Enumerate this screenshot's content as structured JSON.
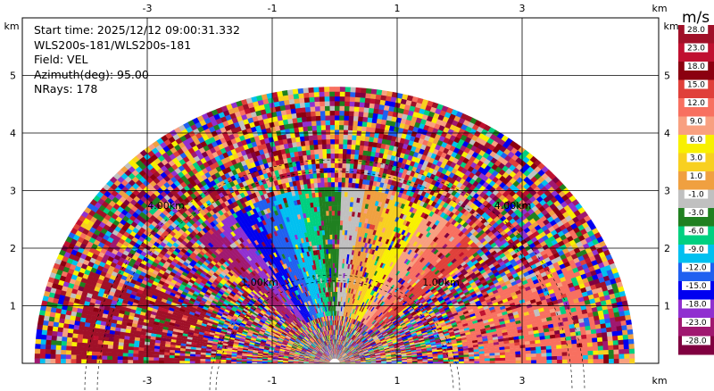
{
  "info": {
    "start_time": "Start time: 2025/12/12 09:00:31.332",
    "station": "WLS200s-181/WLS200s-181",
    "field": "Field: VEL",
    "azimuth": "Azimuth(deg): 95.00",
    "nrays": "NRays: 178"
  },
  "colorbar": {
    "unit": "m/s",
    "levels": [
      "28.0",
      "23.0",
      "18.0",
      "15.0",
      "12.0",
      "9.0",
      "6.0",
      "3.0",
      "1.0",
      "-1.0",
      "-3.0",
      "-6.0",
      "-9.0",
      "-12.0",
      "-15.0",
      "-18.0",
      "-23.0",
      "-28.0"
    ],
    "colors": [
      "#a01028",
      "#c01030",
      "#8b0010",
      "#e0403a",
      "#f87060",
      "#f8a080",
      "#f8f000",
      "#f8d020",
      "#f0a040",
      "#c0c0c0",
      "#208020",
      "#00d080",
      "#00c0f0",
      "#2060f0",
      "#0000f0",
      "#9030d0",
      "#a01870",
      "#800040"
    ]
  },
  "chart_data": {
    "type": "heatmap",
    "title": "",
    "x_axis": {
      "unit": "km",
      "ticks": [
        -3,
        -1,
        1,
        3
      ],
      "range": [
        -5.5,
        5.5
      ]
    },
    "y_axis": {
      "unit": "km",
      "ticks": [
        1,
        2,
        3,
        4,
        5
      ],
      "range": [
        0,
        5.9
      ]
    },
    "range_rings": [
      "1.00km",
      "4.00km"
    ],
    "max_range_km": 4.8,
    "rays": 178,
    "field": "VEL",
    "units": "m/s"
  }
}
